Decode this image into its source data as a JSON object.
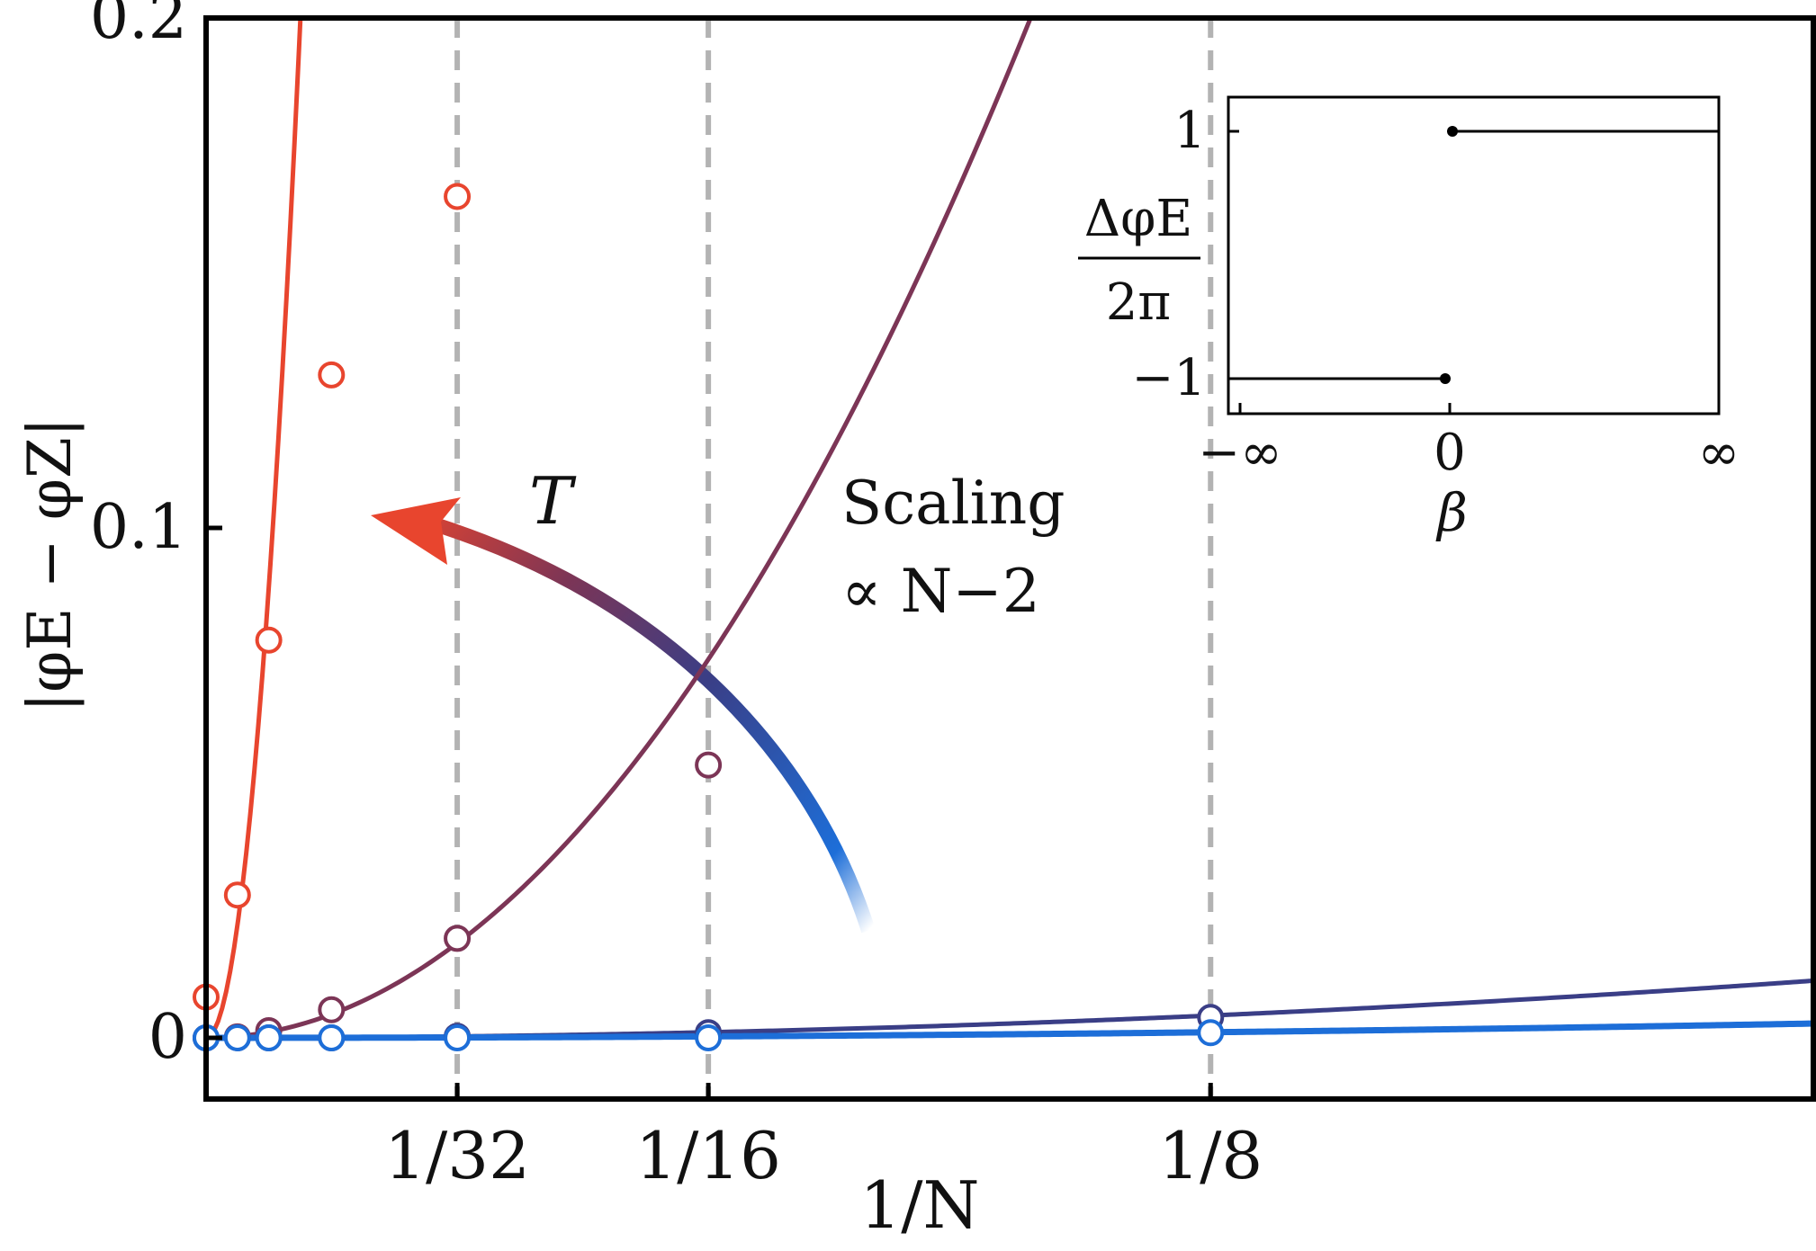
{
  "chart_data": {
    "main": {
      "type": "scatter",
      "xlabel": "1/N",
      "ylabel": "|φE − φZ|",
      "xlim": [
        0,
        0.2
      ],
      "ylim": [
        -0.012,
        0.2
      ],
      "x_ticks": [
        {
          "value": 0.03125,
          "label": "1/32"
        },
        {
          "value": 0.0625,
          "label": "1/16"
        },
        {
          "value": 0.125,
          "label": "1/8"
        }
      ],
      "y_ticks": [
        {
          "value": 0,
          "label": "0"
        },
        {
          "value": 0.1,
          "label": "0.1"
        },
        {
          "value": 0.2,
          "label": "0.2"
        }
      ],
      "vertical_reference_lines": [
        0.03125,
        0.0625,
        0.125
      ],
      "grid": false,
      "series": [
        {
          "color": "#e8452e",
          "points": [
            [
              0.0,
              0.008
            ],
            [
              0.0039,
              0.028
            ],
            [
              0.0078,
              0.078
            ],
            [
              0.0156,
              0.13
            ],
            [
              0.03125,
              0.165
            ]
          ],
          "fit_curve_coefficient": 1450
        },
        {
          "color": "#7c3556",
          "points": [
            [
              0.0,
              0.0
            ],
            [
              0.0039,
              0.0002
            ],
            [
              0.0078,
              0.0014
            ],
            [
              0.0156,
              0.0055
            ],
            [
              0.03125,
              0.0195
            ],
            [
              0.0625,
              0.0535
            ]
          ],
          "fit_curve_coefficient": 19
        },
        {
          "color": "#3a3e86",
          "points": [
            [
              0.0,
              0.0
            ],
            [
              0.0039,
              0.0
            ],
            [
              0.0078,
              0.0
            ],
            [
              0.0156,
              0.0
            ],
            [
              0.03125,
              0.0003
            ],
            [
              0.0625,
              0.001
            ],
            [
              0.125,
              0.004
            ]
          ],
          "fit_curve_coefficient": 0.28
        },
        {
          "color": "#1d6ed8",
          "points": [
            [
              0.0,
              0.0
            ],
            [
              0.0039,
              0.0
            ],
            [
              0.0078,
              0.0
            ],
            [
              0.0156,
              0.0
            ],
            [
              0.03125,
              0.0
            ],
            [
              0.0625,
              0.0
            ],
            [
              0.125,
              0.001
            ]
          ],
          "fit_curve_coefficient": 0.07
        }
      ],
      "annotations": {
        "arrow_label": "T",
        "scaling_line1": "Scaling",
        "scaling_line2": "∝ N−2"
      }
    },
    "inset": {
      "type": "line",
      "xlabel": "β",
      "ylabel_numerator": "ΔφE",
      "ylabel_denominator": "2π",
      "x_ticks": [
        "−∞",
        "0",
        "∞"
      ],
      "y_ticks": [
        {
          "value": 1,
          "label": "1"
        },
        {
          "value": -1,
          "label": "−1"
        }
      ],
      "segments": [
        {
          "x_from": "−∞",
          "x_to": "0",
          "y": -1
        },
        {
          "x_from": "0",
          "x_to": "∞",
          "y": 1
        }
      ]
    }
  }
}
